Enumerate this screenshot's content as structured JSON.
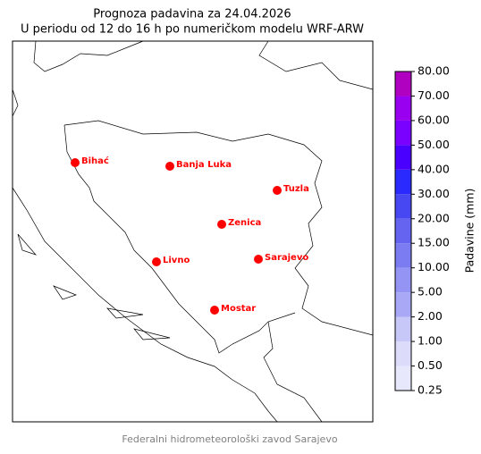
{
  "header": {
    "title": "Prognoza padavina za 24.04.2026",
    "subtitle": "U periodu od 12 do 16 h po numeričkom modelu WRF-ARW"
  },
  "cities": [
    {
      "name": "Bihać"
    },
    {
      "name": "Banja Luka"
    },
    {
      "name": "Tuzla"
    },
    {
      "name": "Zenica"
    },
    {
      "name": "Livno"
    },
    {
      "name": "Sarajevo"
    },
    {
      "name": "Mostar"
    }
  ],
  "colorbar": {
    "label": "Padavine (mm)",
    "ticks": [
      {
        "value": 0.25,
        "label": "0.25"
      },
      {
        "value": 0.5,
        "label": "0.50"
      },
      {
        "value": 1,
        "label": "1.00"
      },
      {
        "value": 2,
        "label": "2.00"
      },
      {
        "value": 5,
        "label": "5.00"
      },
      {
        "value": 10,
        "label": "10.00"
      },
      {
        "value": 15,
        "label": "15.00"
      },
      {
        "value": 20,
        "label": "20.00"
      },
      {
        "value": 30,
        "label": "30.00"
      },
      {
        "value": 40,
        "label": "40.00"
      },
      {
        "value": 50,
        "label": "50.00"
      },
      {
        "value": 60,
        "label": "60.00"
      },
      {
        "value": 70,
        "label": "70.00"
      },
      {
        "value": 80,
        "label": "80.00"
      }
    ],
    "colors": [
      "#e8e8fc",
      "#dcdcfa",
      "#c8c8f8",
      "#a8a8f6",
      "#9494f4",
      "#7c7cf2",
      "#6464f0",
      "#4848f2",
      "#2a2aff",
      "#4a00ff",
      "#7a00ff",
      "#9a00f0",
      "#b000c0"
    ]
  },
  "footer": "Federalni hidrometeorološki zavod Sarajevo"
}
